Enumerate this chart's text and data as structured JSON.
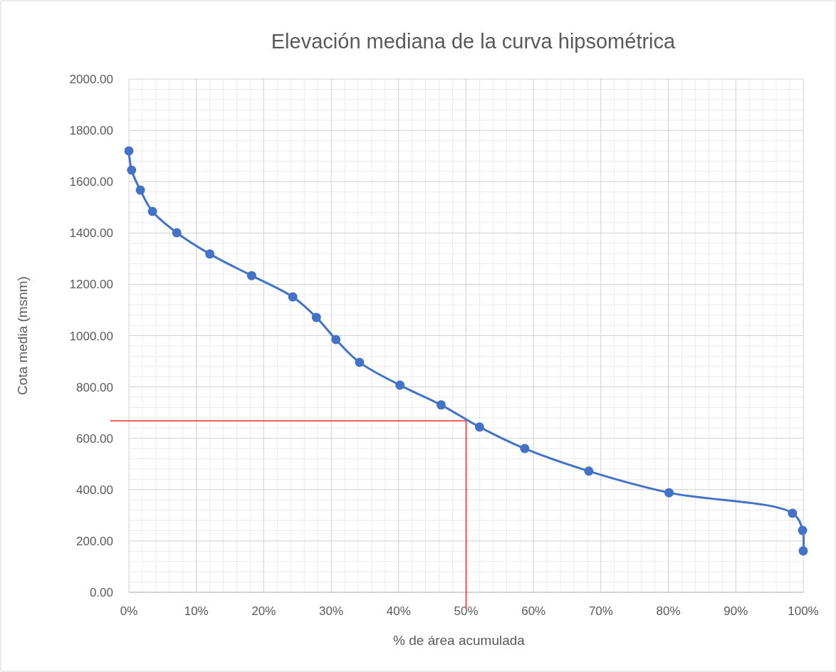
{
  "chart_data": {
    "type": "line",
    "title": "Elevación mediana de la curva hipsométrica",
    "xlabel": "% de área acumulada",
    "ylabel": "Cota media (msnm)",
    "x": [
      0,
      0.4,
      1.7,
      3.5,
      7.1,
      12.0,
      18.2,
      24.3,
      27.8,
      30.7,
      34.2,
      40.2,
      46.3,
      52.0,
      58.7,
      68.2,
      80.1,
      98.4,
      99.9,
      100
    ],
    "series": [
      {
        "color": "#4472c4",
        "values": [
          1720,
          1645,
          1567,
          1484,
          1401,
          1318,
          1234,
          1151,
          1071,
          985,
          896,
          807,
          730,
          644,
          560,
          472,
          388,
          308,
          241,
          161
        ]
      }
    ],
    "xlim": [
      0,
      100
    ],
    "ylim": [
      0,
      2000
    ],
    "xticks": [
      {
        "value": 0,
        "label": "0%"
      },
      {
        "value": 10,
        "label": "10%"
      },
      {
        "value": 20,
        "label": "20%"
      },
      {
        "value": 30,
        "label": "30%"
      },
      {
        "value": 40,
        "label": "40%"
      },
      {
        "value": 50,
        "label": "50%"
      },
      {
        "value": 60,
        "label": "60%"
      },
      {
        "value": 70,
        "label": "70%"
      },
      {
        "value": 80,
        "label": "80%"
      },
      {
        "value": 90,
        "label": "90%"
      },
      {
        "value": 100,
        "label": "100%"
      }
    ],
    "yticks": [
      {
        "value": 0,
        "label": "0.00"
      },
      {
        "value": 200,
        "label": "200.00"
      },
      {
        "value": 400,
        "label": "400.00"
      },
      {
        "value": 600,
        "label": "600.00"
      },
      {
        "value": 800,
        "label": "800.00"
      },
      {
        "value": 1000,
        "label": "1000.00"
      },
      {
        "value": 1200,
        "label": "1200.00"
      },
      {
        "value": 1400,
        "label": "1400.00"
      },
      {
        "value": 1600,
        "label": "1600.00"
      },
      {
        "value": 1800,
        "label": "1800.00"
      },
      {
        "value": 2000,
        "label": "2000.00"
      }
    ],
    "grid": true,
    "marker": "circle",
    "line_style": "solid",
    "ref_lines": [
      {
        "axis": "y",
        "value": 668,
        "color": "#ff0000"
      },
      {
        "axis": "x",
        "value": 50,
        "color": "#ff0000"
      }
    ]
  }
}
